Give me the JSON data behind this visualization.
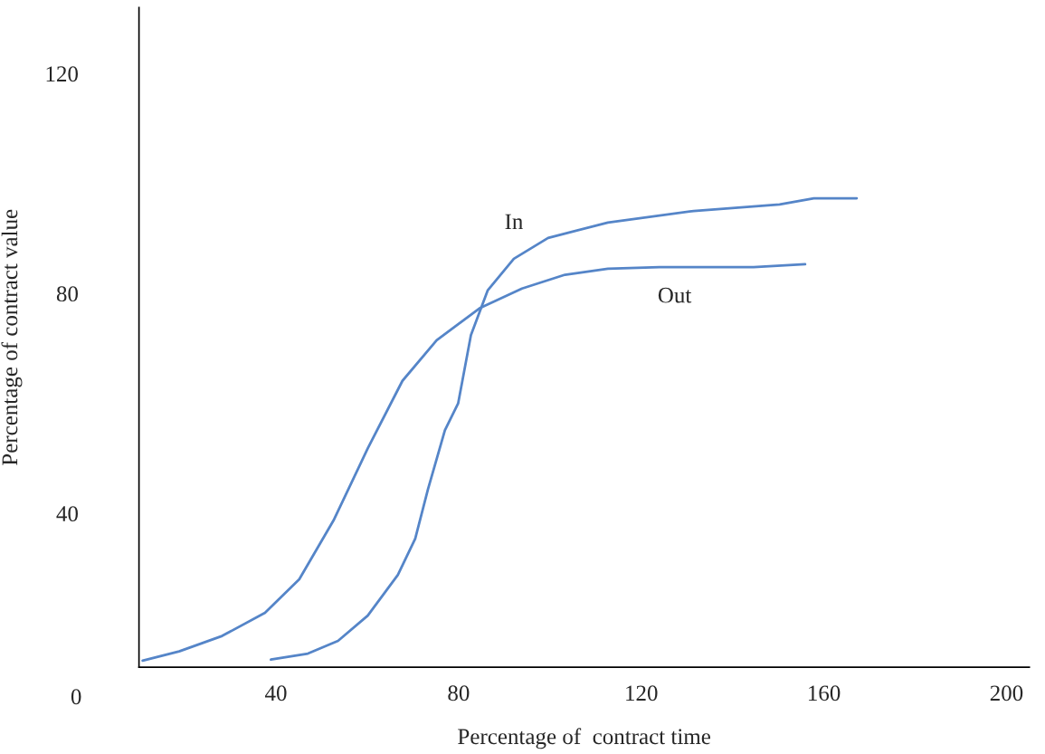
{
  "chart_data": {
    "type": "line",
    "xlabel": "Percentage of  contract time",
    "ylabel": "Percentage of contract value",
    "xlim": [
      10,
      205
    ],
    "xticks": [
      40,
      80,
      120,
      160,
      200
    ],
    "ylim": [
      12,
      132
    ],
    "yticks": [
      40,
      80,
      120
    ],
    "grid": false,
    "legend": false,
    "marker": "none",
    "line_style": "solid",
    "annotations": [
      "0"
    ],
    "series": [
      {
        "name": "In",
        "color": "#5585c8",
        "x": [
          38.9,
          47,
          53.6,
          60.1,
          66.7,
          70.5,
          73.3,
          77,
          79.9,
          82.7,
          86.4,
          92.1,
          99.6,
          112.7,
          131.5,
          150.3,
          157.8,
          167.2
        ],
        "values": [
          13.4,
          14.5,
          16.8,
          21.4,
          28.8,
          35.4,
          44.4,
          55.1,
          60,
          72.4,
          80.6,
          86.3,
          90.1,
          92.9,
          95.0,
          96.2,
          97.3,
          97.3
        ]
      },
      {
        "name": "Out",
        "color": "#5585c8",
        "x": [
          10.8,
          18.8,
          28.2,
          37.6,
          45.1,
          52.6,
          60.1,
          67.7,
          75.2,
          84.6,
          93.9,
          103.3,
          112.7,
          124,
          144.6,
          155.9
        ],
        "values": [
          13.2,
          14.9,
          17.7,
          21.9,
          28,
          38.7,
          51.8,
          64.1,
          71.5,
          77.3,
          80.9,
          83.4,
          84.5,
          84.8,
          84.8,
          85.3
        ]
      }
    ]
  }
}
